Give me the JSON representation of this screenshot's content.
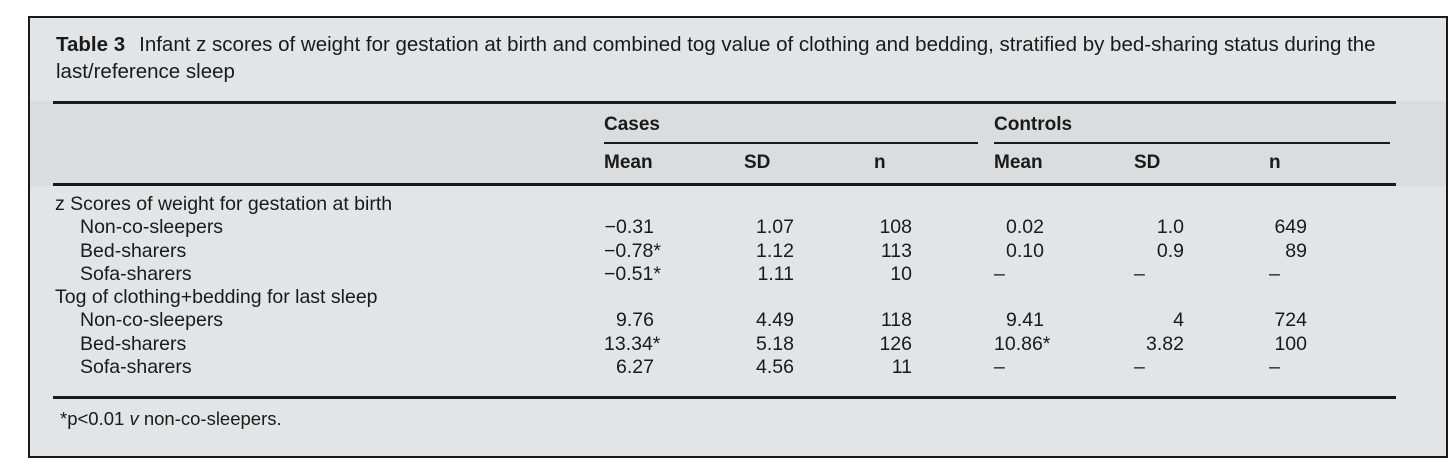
{
  "table": {
    "label": "Table 3",
    "title": "Infant z scores of weight for gestation at birth and combined tog value of clothing and bedding, stratified by bed-sharing status during the last/reference sleep",
    "col_groups": [
      {
        "label": "Cases"
      },
      {
        "label": "Controls"
      }
    ],
    "sub_headers": [
      "Mean",
      "SD",
      "n",
      "Mean",
      "SD",
      "n"
    ],
    "sections": [
      {
        "header": "z Scores of weight for gestation at birth",
        "rows": [
          {
            "label": "Non-co-sleepers",
            "cells": [
              "−0.31",
              "1.07",
              "108",
              "0.02",
              "1.0",
              "649"
            ]
          },
          {
            "label": "Bed-sharers",
            "cells": [
              "−0.78*",
              "1.12",
              "113",
              "0.10",
              "0.9",
              "89"
            ]
          },
          {
            "label": "Sofa-sharers",
            "cells": [
              "−0.51*",
              "1.11",
              "10",
              "–",
              "–",
              "–"
            ]
          }
        ]
      },
      {
        "header": "Tog of clothing+bedding for last sleep",
        "rows": [
          {
            "label": "Non-co-sleepers",
            "cells": [
              "9.76",
              "4.49",
              "118",
              "9.41",
              "4",
              "724"
            ]
          },
          {
            "label": "Bed-sharers",
            "cells": [
              "13.34*",
              "5.18",
              "126",
              "10.86*",
              "3.82",
              "100"
            ]
          },
          {
            "label": "Sofa-sharers",
            "cells": [
              "6.27",
              "4.56",
              "11",
              "–",
              "–",
              "–"
            ]
          }
        ]
      }
    ],
    "footnote": {
      "prefix": "*p<0.01 ",
      "italic_term": "v",
      "suffix": " non-co-sleepers."
    }
  },
  "colors": {
    "panel_bg": "#e3e4e5",
    "band_bg": "#dbdcdd",
    "line": "#1a1a1a"
  }
}
